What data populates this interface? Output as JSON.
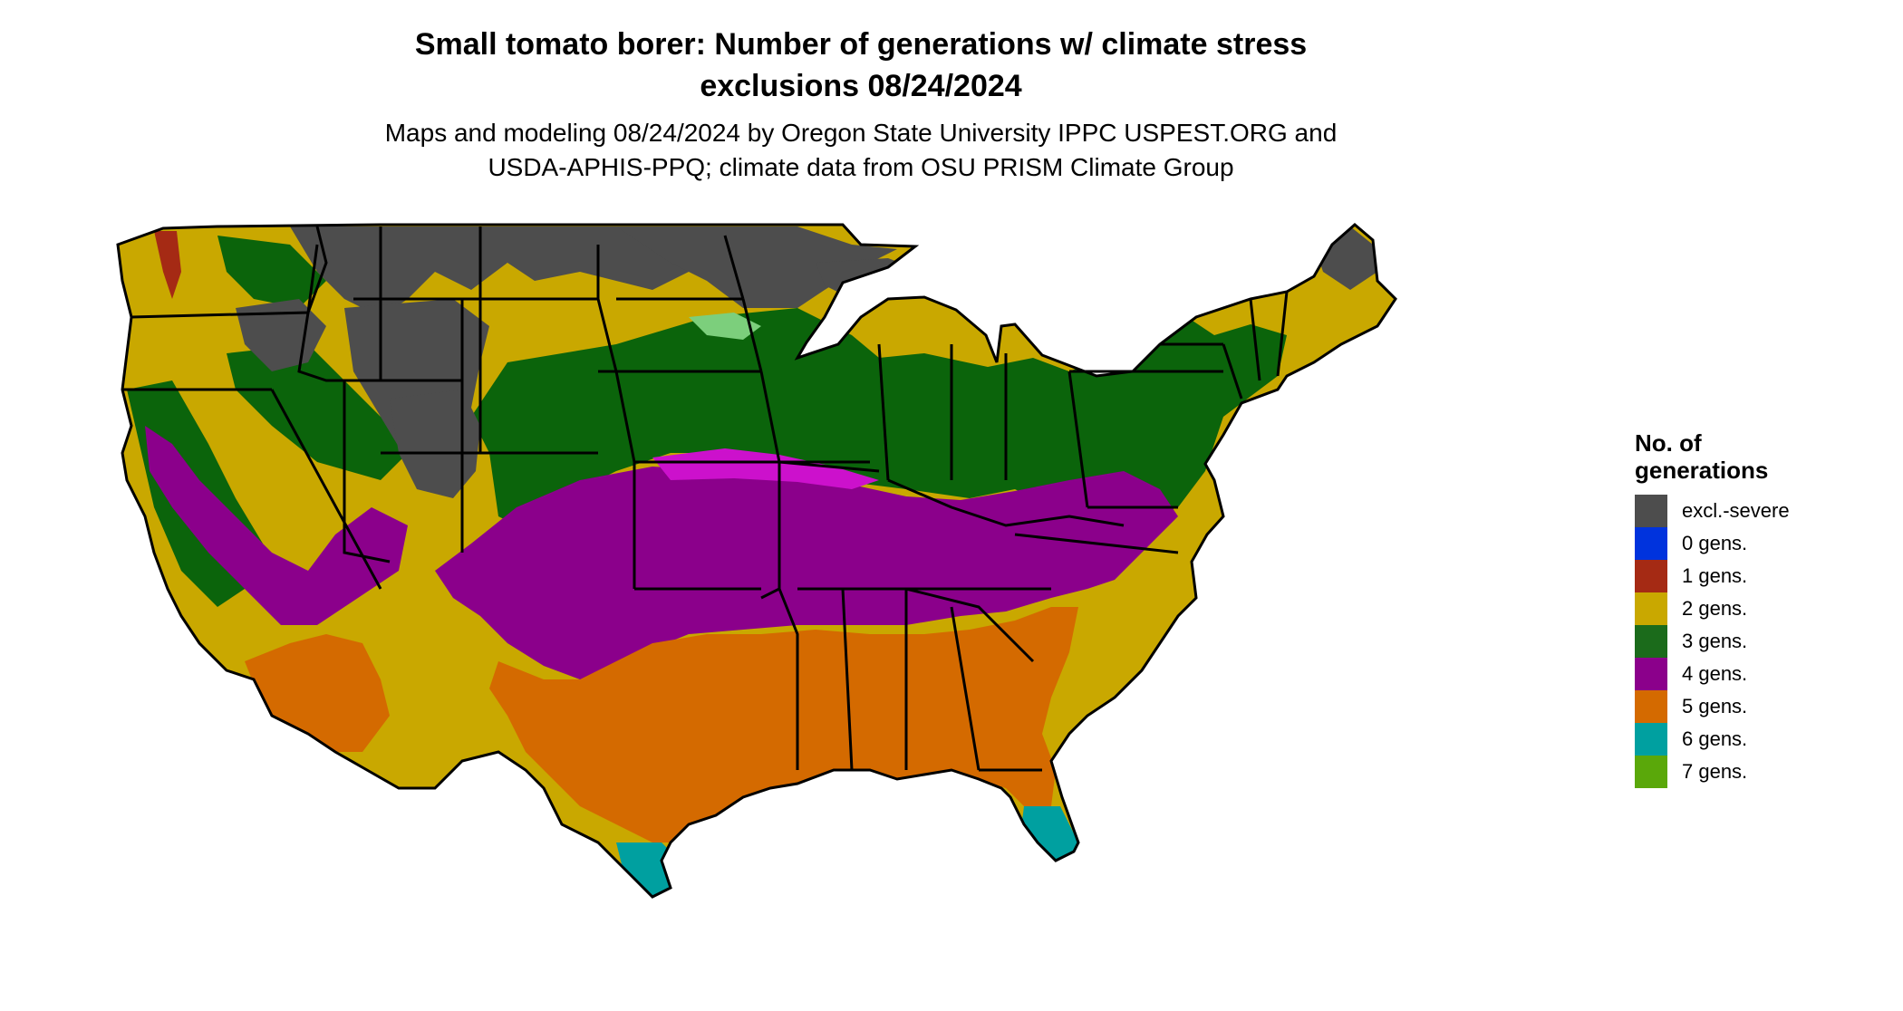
{
  "title_line1": "Small tomato borer: Number of generations w/ climate stress",
  "title_line2": "exclusions 08/24/2024",
  "subtitle_line1": "Maps and modeling 08/24/2024 by Oregon State University IPPC USPEST.ORG and",
  "subtitle_line2": "USDA-APHIS-PPQ; climate data from OSU PRISM Climate Group",
  "legend": {
    "title_line1": "No. of",
    "title_line2": "generations",
    "items": [
      {
        "label": "excl.-severe",
        "color": "#4d4d4d"
      },
      {
        "label": "0 gens.",
        "color": "#0033dd"
      },
      {
        "label": "1 gens.",
        "color": "#a52a14"
      },
      {
        "label": "2 gens.",
        "color": "#c9a800"
      },
      {
        "label": "3 gens.",
        "color": "#1b6b1b"
      },
      {
        "label": "4 gens.",
        "color": "#8b008b"
      },
      {
        "label": "5 gens.",
        "color": "#d46a00"
      },
      {
        "label": "6 gens.",
        "color": "#00a0a0"
      },
      {
        "label": "7 gens.",
        "color": "#5aa80a"
      }
    ]
  },
  "region_colors": {
    "excluded": "#4d4d4d",
    "two": "#c9a800",
    "three": "#0b640b",
    "four": "#8b008b",
    "four_bright": "#cc11cc",
    "five": "#d46a00",
    "six": "#00a0a0",
    "one": "#a52a14",
    "light_green": "#7ccf7c"
  }
}
